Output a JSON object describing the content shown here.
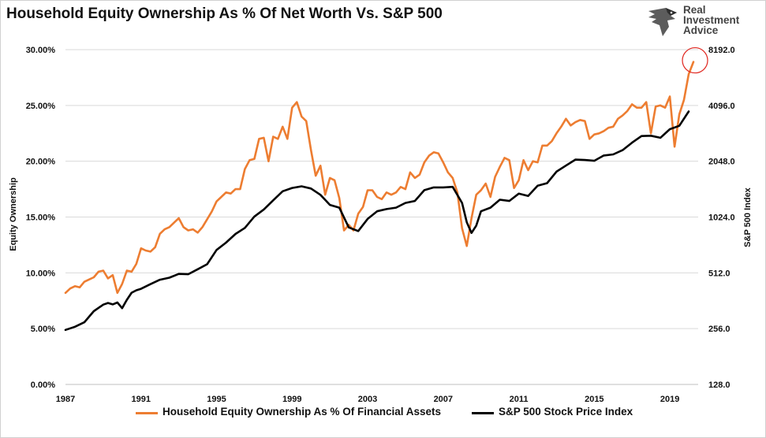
{
  "title": "Household Equity Ownership As % Of Net Worth Vs. S&P 500",
  "logo": {
    "line1": "Real",
    "line2": "Investment",
    "line3": "Advice",
    "icon": "eagle-icon"
  },
  "colors": {
    "equity": "#ed7d31",
    "sp500": "#000000",
    "highlight": "#e0261f"
  },
  "chart_data": {
    "type": "line",
    "title": "Household Equity Ownership As % Of Net Worth Vs. S&P 500",
    "xlabel": "",
    "ylabel": "Equity Ownership",
    "y2label": "S&P 500 Index",
    "xlim": [
      1987,
      2020.5
    ],
    "ylim": [
      0,
      30
    ],
    "y2lim_log2": [
      128,
      8192
    ],
    "x_ticks": [
      "1987",
      "1991",
      "1995",
      "1999",
      "2003",
      "2007",
      "2011",
      "2015",
      "2019"
    ],
    "y_ticks": [
      "0.00%",
      "5.00%",
      "10.00%",
      "15.00%",
      "20.00%",
      "25.00%",
      "30.00%"
    ],
    "y2_ticks": [
      "128.0",
      "256.0",
      "512.0",
      "1024.0",
      "2048.0",
      "4096.0",
      "8192.0"
    ],
    "series": [
      {
        "name": "Household Equity Ownership As % Of Financial Assets",
        "axis": "left",
        "x": [
          1987.0,
          1987.25,
          1987.5,
          1987.75,
          1988.0,
          1988.25,
          1988.5,
          1988.75,
          1989.0,
          1989.25,
          1989.5,
          1989.75,
          1990.0,
          1990.25,
          1990.5,
          1990.75,
          1991.0,
          1991.25,
          1991.5,
          1991.75,
          1992.0,
          1992.25,
          1992.5,
          1992.75,
          1993.0,
          1993.25,
          1993.5,
          1993.75,
          1994.0,
          1994.25,
          1994.5,
          1994.75,
          1995.0,
          1995.25,
          1995.5,
          1995.75,
          1996.0,
          1996.25,
          1996.5,
          1996.75,
          1997.0,
          1997.25,
          1997.5,
          1997.75,
          1998.0,
          1998.25,
          1998.5,
          1998.75,
          1999.0,
          1999.25,
          1999.5,
          1999.75,
          2000.0,
          2000.25,
          2000.5,
          2000.75,
          2001.0,
          2001.25,
          2001.5,
          2001.75,
          2002.0,
          2002.25,
          2002.5,
          2002.75,
          2003.0,
          2003.25,
          2003.5,
          2003.75,
          2004.0,
          2004.25,
          2004.5,
          2004.75,
          2005.0,
          2005.25,
          2005.5,
          2005.75,
          2006.0,
          2006.25,
          2006.5,
          2006.75,
          2007.0,
          2007.25,
          2007.5,
          2007.75,
          2008.0,
          2008.25,
          2008.5,
          2008.75,
          2009.0,
          2009.25,
          2009.5,
          2009.75,
          2010.0,
          2010.25,
          2010.5,
          2010.75,
          2011.0,
          2011.25,
          2011.5,
          2011.75,
          2012.0,
          2012.25,
          2012.5,
          2012.75,
          2013.0,
          2013.25,
          2013.5,
          2013.75,
          2014.0,
          2014.25,
          2014.5,
          2014.75,
          2015.0,
          2015.25,
          2015.5,
          2015.75,
          2016.0,
          2016.25,
          2016.5,
          2016.75,
          2017.0,
          2017.25,
          2017.5,
          2017.75,
          2018.0,
          2018.25,
          2018.5,
          2018.75,
          2019.0,
          2019.25,
          2019.5,
          2019.75,
          2020.0,
          2020.25
        ],
        "values": [
          8.2,
          8.6,
          8.8,
          8.7,
          9.2,
          9.4,
          9.6,
          10.1,
          10.2,
          9.5,
          9.8,
          8.2,
          9.0,
          10.2,
          10.1,
          10.8,
          12.2,
          12.0,
          11.9,
          12.3,
          13.5,
          13.9,
          14.1,
          14.5,
          14.9,
          14.1,
          13.8,
          13.9,
          13.6,
          14.1,
          14.8,
          15.5,
          16.4,
          16.8,
          17.2,
          17.1,
          17.5,
          17.5,
          19.3,
          20.1,
          20.2,
          22.0,
          22.1,
          20.0,
          22.2,
          22.0,
          23.1,
          22.0,
          24.8,
          25.3,
          24.0,
          23.6,
          21.0,
          18.7,
          19.6,
          17.0,
          18.5,
          18.3,
          16.7,
          13.8,
          14.3,
          13.8,
          15.3,
          15.9,
          17.4,
          17.4,
          16.8,
          16.6,
          17.2,
          17.0,
          17.2,
          17.7,
          17.5,
          19.0,
          18.5,
          18.8,
          19.9,
          20.5,
          20.8,
          20.7,
          19.9,
          19.0,
          18.5,
          17.2,
          14.0,
          12.4,
          14.9,
          17.0,
          17.4,
          18.0,
          16.8,
          18.6,
          19.5,
          20.3,
          20.1,
          17.6,
          18.3,
          20.1,
          19.2,
          20.0,
          19.9,
          21.4,
          21.4,
          21.8,
          22.5,
          23.1,
          23.8,
          23.2,
          23.5,
          23.7,
          23.6,
          22.0,
          22.4,
          22.5,
          22.7,
          23.0,
          23.1,
          23.8,
          24.1,
          24.5,
          25.1,
          24.8,
          24.8,
          25.3,
          22.5,
          24.9,
          25.0,
          24.8,
          25.8,
          21.3,
          24.2,
          25.5,
          27.8,
          28.9
        ]
      },
      {
        "name": "S&P 500 Stock Price Index",
        "axis": "right",
        "x": [
          1987.0,
          1987.5,
          1988.0,
          1988.5,
          1989.0,
          1989.25,
          1989.5,
          1989.75,
          1990.0,
          1990.25,
          1990.5,
          1990.75,
          1991.0,
          1991.5,
          1992.0,
          1992.5,
          1993.0,
          1993.5,
          1994.0,
          1994.5,
          1995.0,
          1995.5,
          1996.0,
          1996.5,
          1997.0,
          1997.5,
          1998.0,
          1998.5,
          1999.0,
          1999.5,
          2000.0,
          2000.5,
          2001.0,
          2001.5,
          2002.0,
          2002.5,
          2003.0,
          2003.5,
          2004.0,
          2004.5,
          2005.0,
          2005.5,
          2006.0,
          2006.5,
          2007.0,
          2007.5,
          2008.0,
          2008.25,
          2008.5,
          2008.75,
          2009.0,
          2009.5,
          2010.0,
          2010.5,
          2011.0,
          2011.5,
          2012.0,
          2012.5,
          2013.0,
          2013.5,
          2014.0,
          2014.5,
          2015.0,
          2015.5,
          2016.0,
          2016.5,
          2017.0,
          2017.5,
          2018.0,
          2018.5,
          2019.0,
          2019.5,
          2020.0
        ],
        "values": [
          252,
          262,
          277,
          318,
          345,
          352,
          346,
          354,
          330,
          366,
          400,
          412,
          420,
          445,
          470,
          482,
          505,
          503,
          535,
          570,
          680,
          745,
          830,
          895,
          1030,
          1125,
          1260,
          1410,
          1470,
          1500,
          1460,
          1350,
          1190,
          1150,
          900,
          860,
          1000,
          1100,
          1130,
          1150,
          1220,
          1250,
          1430,
          1480,
          1480,
          1490,
          1220,
          960,
          840,
          920,
          1100,
          1150,
          1270,
          1250,
          1370,
          1330,
          1510,
          1560,
          1800,
          1940,
          2090,
          2080,
          2060,
          2200,
          2230,
          2350,
          2580,
          2800,
          2810,
          2740,
          3050,
          3180,
          3800
        ]
      }
    ]
  }
}
